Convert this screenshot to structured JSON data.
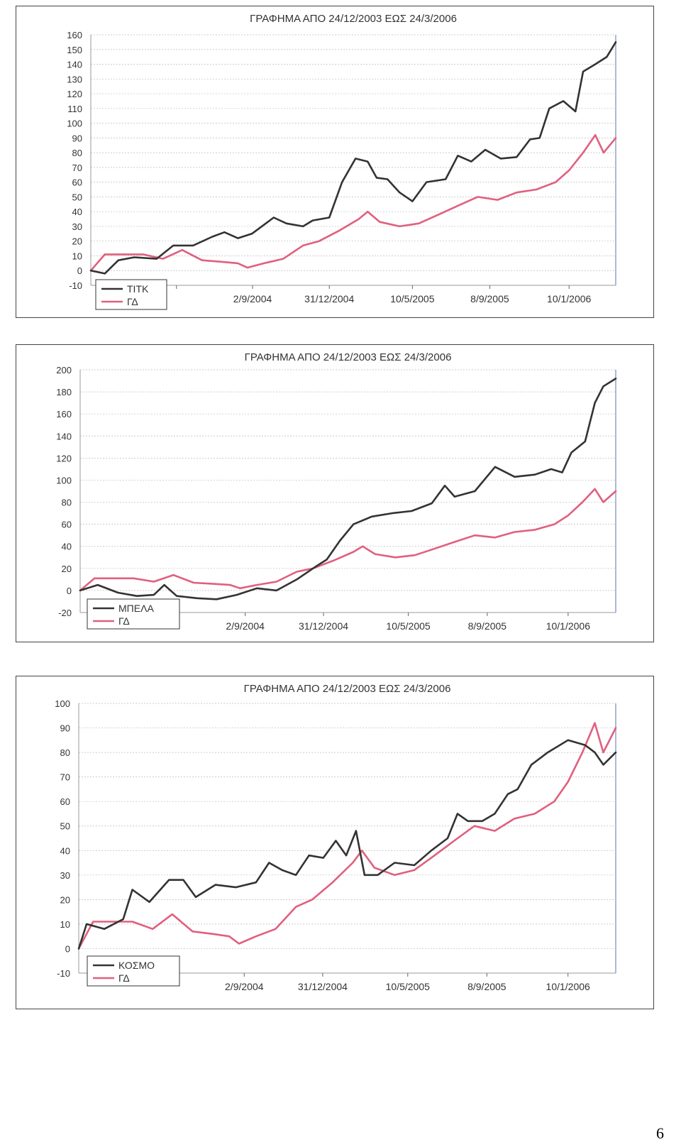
{
  "page_number": "6",
  "chart_data": [
    {
      "type": "line",
      "title": "ΓΡΑΦΗΜΑ ΑΠΟ 24/12/2003 ΕΩΣ 24/3/2006",
      "x_start": "24/12/2003",
      "x_end": "24/3/2006",
      "x_ticks": [
        "",
        "2/9/2004",
        "31/12/2004",
        "10/5/2005",
        "8/9/2005",
        "10/1/2006"
      ],
      "x_tick_dates": [
        "2004-05-06",
        "2004-09-02",
        "2004-12-31",
        "2005-05-10",
        "2005-09-08",
        "2006-01-10"
      ],
      "ylim": [
        -10,
        160
      ],
      "yticks": [
        -10,
        0,
        10,
        20,
        30,
        40,
        50,
        60,
        70,
        80,
        90,
        100,
        110,
        120,
        130,
        140,
        150,
        160
      ],
      "grid": true,
      "legend_position": "bottom-left",
      "series": [
        {
          "name": "ΤΙΤΚ",
          "color": "#333333",
          "points": [
            [
              "2003-12-24",
              0
            ],
            [
              "2004-01-15",
              -2
            ],
            [
              "2004-02-05",
              7
            ],
            [
              "2004-03-01",
              9
            ],
            [
              "2004-04-05",
              8
            ],
            [
              "2004-05-01",
              17
            ],
            [
              "2004-06-01",
              17
            ],
            [
              "2004-07-01",
              23
            ],
            [
              "2004-07-20",
              26
            ],
            [
              "2004-08-10",
              22
            ],
            [
              "2004-09-01",
              25
            ],
            [
              "2004-10-05",
              36
            ],
            [
              "2004-10-25",
              32
            ],
            [
              "2004-11-20",
              30
            ],
            [
              "2004-12-05",
              34
            ],
            [
              "2004-12-31",
              36
            ],
            [
              "2005-01-20",
              60
            ],
            [
              "2005-02-10",
              76
            ],
            [
              "2005-03-01",
              74
            ],
            [
              "2005-03-15",
              63
            ],
            [
              "2005-04-01",
              62
            ],
            [
              "2005-04-20",
              53
            ],
            [
              "2005-05-10",
              47
            ],
            [
              "2005-06-01",
              60
            ],
            [
              "2005-07-01",
              62
            ],
            [
              "2005-07-20",
              78
            ],
            [
              "2005-08-10",
              74
            ],
            [
              "2005-09-01",
              82
            ],
            [
              "2005-09-25",
              76
            ],
            [
              "2005-10-20",
              77
            ],
            [
              "2005-11-10",
              89
            ],
            [
              "2005-11-25",
              90
            ],
            [
              "2005-12-10",
              110
            ],
            [
              "2006-01-01",
              115
            ],
            [
              "2006-01-20",
              108
            ],
            [
              "2006-02-01",
              135
            ],
            [
              "2006-02-20",
              140
            ],
            [
              "2006-03-10",
              145
            ],
            [
              "2006-03-24",
              155
            ]
          ]
        },
        {
          "name": "ΓΔ",
          "color": "#e0607e",
          "points": [
            [
              "2003-12-24",
              0
            ],
            [
              "2004-01-15",
              11
            ],
            [
              "2004-02-15",
              11
            ],
            [
              "2004-03-15",
              11
            ],
            [
              "2004-04-15",
              8
            ],
            [
              "2004-05-15",
              14
            ],
            [
              "2004-06-15",
              7
            ],
            [
              "2004-07-15",
              6
            ],
            [
              "2004-08-10",
              5
            ],
            [
              "2004-08-25",
              2
            ],
            [
              "2004-09-20",
              5
            ],
            [
              "2004-10-20",
              8
            ],
            [
              "2004-11-20",
              17
            ],
            [
              "2004-12-15",
              20
            ],
            [
              "2005-01-15",
              27
            ],
            [
              "2005-02-15",
              35
            ],
            [
              "2005-03-01",
              40
            ],
            [
              "2005-03-20",
              33
            ],
            [
              "2005-04-20",
              30
            ],
            [
              "2005-05-20",
              32
            ],
            [
              "2005-06-20",
              38
            ],
            [
              "2005-07-20",
              44
            ],
            [
              "2005-08-20",
              50
            ],
            [
              "2005-09-20",
              48
            ],
            [
              "2005-10-20",
              53
            ],
            [
              "2005-11-20",
              55
            ],
            [
              "2005-12-20",
              60
            ],
            [
              "2006-01-10",
              68
            ],
            [
              "2006-02-01",
              80
            ],
            [
              "2006-02-20",
              92
            ],
            [
              "2006-03-05",
              80
            ],
            [
              "2006-03-24",
              90
            ]
          ]
        }
      ]
    },
    {
      "type": "line",
      "title": "ΓΡΑΦΗΜΑ ΑΠΟ 24/12/2003 ΕΩΣ 24/3/2006",
      "x_start": "24/12/2003",
      "x_end": "24/3/2006",
      "x_ticks": [
        "",
        "2/9/2004",
        "31/12/2004",
        "10/5/2005",
        "8/9/2005",
        "10/1/2006"
      ],
      "x_tick_dates": [
        "2004-05-06",
        "2004-09-02",
        "2004-12-31",
        "2005-05-10",
        "2005-09-08",
        "2006-01-10"
      ],
      "ylim": [
        -20,
        200
      ],
      "yticks": [
        -20,
        0,
        20,
        40,
        60,
        80,
        100,
        120,
        140,
        160,
        180,
        200
      ],
      "grid": true,
      "legend_position": "bottom-left",
      "series": [
        {
          "name": "ΜΠΕΛΑ",
          "color": "#333333",
          "points": [
            [
              "2003-12-24",
              0
            ],
            [
              "2004-01-20",
              5
            ],
            [
              "2004-02-20",
              -2
            ],
            [
              "2004-03-20",
              -5
            ],
            [
              "2004-04-15",
              -4
            ],
            [
              "2004-05-01",
              5
            ],
            [
              "2004-05-20",
              -5
            ],
            [
              "2004-06-20",
              -7
            ],
            [
              "2004-07-20",
              -8
            ],
            [
              "2004-08-20",
              -4
            ],
            [
              "2004-09-20",
              2
            ],
            [
              "2004-10-20",
              0
            ],
            [
              "2004-11-20",
              10
            ],
            [
              "2004-12-20",
              22
            ],
            [
              "2005-01-05",
              28
            ],
            [
              "2005-01-25",
              45
            ],
            [
              "2005-02-15",
              60
            ],
            [
              "2005-03-15",
              67
            ],
            [
              "2005-04-15",
              70
            ],
            [
              "2005-05-15",
              72
            ],
            [
              "2005-06-15",
              79
            ],
            [
              "2005-07-05",
              95
            ],
            [
              "2005-07-20",
              85
            ],
            [
              "2005-08-20",
              90
            ],
            [
              "2005-09-20",
              112
            ],
            [
              "2005-10-20",
              103
            ],
            [
              "2005-11-20",
              105
            ],
            [
              "2005-12-15",
              110
            ],
            [
              "2006-01-01",
              107
            ],
            [
              "2006-01-15",
              125
            ],
            [
              "2006-02-05",
              135
            ],
            [
              "2006-02-20",
              170
            ],
            [
              "2006-03-05",
              185
            ],
            [
              "2006-03-24",
              192
            ]
          ]
        },
        {
          "name": "ΓΔ",
          "color": "#e0607e",
          "points": [
            [
              "2003-12-24",
              0
            ],
            [
              "2004-01-15",
              11
            ],
            [
              "2004-02-15",
              11
            ],
            [
              "2004-03-15",
              11
            ],
            [
              "2004-04-15",
              8
            ],
            [
              "2004-05-15",
              14
            ],
            [
              "2004-06-15",
              7
            ],
            [
              "2004-07-15",
              6
            ],
            [
              "2004-08-10",
              5
            ],
            [
              "2004-08-25",
              2
            ],
            [
              "2004-09-20",
              5
            ],
            [
              "2004-10-20",
              8
            ],
            [
              "2004-11-20",
              17
            ],
            [
              "2004-12-15",
              20
            ],
            [
              "2005-01-15",
              27
            ],
            [
              "2005-02-15",
              35
            ],
            [
              "2005-03-01",
              40
            ],
            [
              "2005-03-20",
              33
            ],
            [
              "2005-04-20",
              30
            ],
            [
              "2005-05-20",
              32
            ],
            [
              "2005-06-20",
              38
            ],
            [
              "2005-07-20",
              44
            ],
            [
              "2005-08-20",
              50
            ],
            [
              "2005-09-20",
              48
            ],
            [
              "2005-10-20",
              53
            ],
            [
              "2005-11-20",
              55
            ],
            [
              "2005-12-20",
              60
            ],
            [
              "2006-01-10",
              68
            ],
            [
              "2006-02-01",
              80
            ],
            [
              "2006-02-20",
              92
            ],
            [
              "2006-03-05",
              80
            ],
            [
              "2006-03-24",
              90
            ]
          ]
        }
      ]
    },
    {
      "type": "line",
      "title": "ΓΡΑΦΗΜΑ ΑΠΟ 24/12/2003 ΕΩΣ 24/3/2006",
      "x_start": "24/12/2003",
      "x_end": "24/3/2006",
      "x_ticks": [
        "",
        "2/9/2004",
        "31/12/2004",
        "10/5/2005",
        "8/9/2005",
        "10/1/2006"
      ],
      "x_tick_dates": [
        "2004-05-06",
        "2004-09-02",
        "2004-12-31",
        "2005-05-10",
        "2005-09-08",
        "2006-01-10"
      ],
      "ylim": [
        -10,
        100
      ],
      "yticks": [
        -10,
        0,
        10,
        20,
        30,
        40,
        50,
        60,
        70,
        80,
        90,
        100
      ],
      "grid": true,
      "legend_position": "bottom-left",
      "series": [
        {
          "name": "ΚΟΣΜΟ",
          "color": "#333333",
          "points": [
            [
              "2003-12-24",
              0
            ],
            [
              "2004-01-05",
              10
            ],
            [
              "2004-02-01",
              8
            ],
            [
              "2004-03-01",
              12
            ],
            [
              "2004-03-15",
              24
            ],
            [
              "2004-04-10",
              19
            ],
            [
              "2004-05-10",
              28
            ],
            [
              "2004-06-01",
              28
            ],
            [
              "2004-06-20",
              21
            ],
            [
              "2004-07-20",
              26
            ],
            [
              "2004-08-20",
              25
            ],
            [
              "2004-09-20",
              27
            ],
            [
              "2004-10-10",
              35
            ],
            [
              "2004-10-30",
              32
            ],
            [
              "2004-11-20",
              30
            ],
            [
              "2004-12-10",
              38
            ],
            [
              "2005-01-01",
              37
            ],
            [
              "2005-01-20",
              44
            ],
            [
              "2005-02-05",
              38
            ],
            [
              "2005-02-20",
              48
            ],
            [
              "2005-03-05",
              30
            ],
            [
              "2005-03-25",
              30
            ],
            [
              "2005-04-20",
              35
            ],
            [
              "2005-05-20",
              34
            ],
            [
              "2005-06-15",
              40
            ],
            [
              "2005-07-10",
              45
            ],
            [
              "2005-07-25",
              55
            ],
            [
              "2005-08-10",
              52
            ],
            [
              "2005-09-01",
              52
            ],
            [
              "2005-09-20",
              55
            ],
            [
              "2005-10-10",
              63
            ],
            [
              "2005-10-25",
              65
            ],
            [
              "2005-11-15",
              75
            ],
            [
              "2005-12-10",
              80
            ],
            [
              "2006-01-10",
              85
            ],
            [
              "2006-02-05",
              83
            ],
            [
              "2006-02-20",
              80
            ],
            [
              "2006-03-05",
              75
            ],
            [
              "2006-03-24",
              80
            ]
          ]
        },
        {
          "name": "ΓΔ",
          "color": "#e0607e",
          "points": [
            [
              "2003-12-24",
              0
            ],
            [
              "2004-01-15",
              11
            ],
            [
              "2004-02-15",
              11
            ],
            [
              "2004-03-15",
              11
            ],
            [
              "2004-04-15",
              8
            ],
            [
              "2004-05-15",
              14
            ],
            [
              "2004-06-15",
              7
            ],
            [
              "2004-07-15",
              6
            ],
            [
              "2004-08-10",
              5
            ],
            [
              "2004-08-25",
              2
            ],
            [
              "2004-09-20",
              5
            ],
            [
              "2004-10-20",
              8
            ],
            [
              "2004-11-20",
              17
            ],
            [
              "2004-12-15",
              20
            ],
            [
              "2005-01-15",
              27
            ],
            [
              "2005-02-15",
              35
            ],
            [
              "2005-03-01",
              40
            ],
            [
              "2005-03-20",
              33
            ],
            [
              "2005-04-20",
              30
            ],
            [
              "2005-05-20",
              32
            ],
            [
              "2005-06-20",
              38
            ],
            [
              "2005-07-20",
              44
            ],
            [
              "2005-08-20",
              50
            ],
            [
              "2005-09-20",
              48
            ],
            [
              "2005-10-20",
              53
            ],
            [
              "2005-11-20",
              55
            ],
            [
              "2005-12-20",
              60
            ],
            [
              "2006-01-10",
              68
            ],
            [
              "2006-02-01",
              80
            ],
            [
              "2006-02-20",
              92
            ],
            [
              "2006-03-05",
              80
            ],
            [
              "2006-03-24",
              90
            ]
          ]
        }
      ]
    }
  ]
}
